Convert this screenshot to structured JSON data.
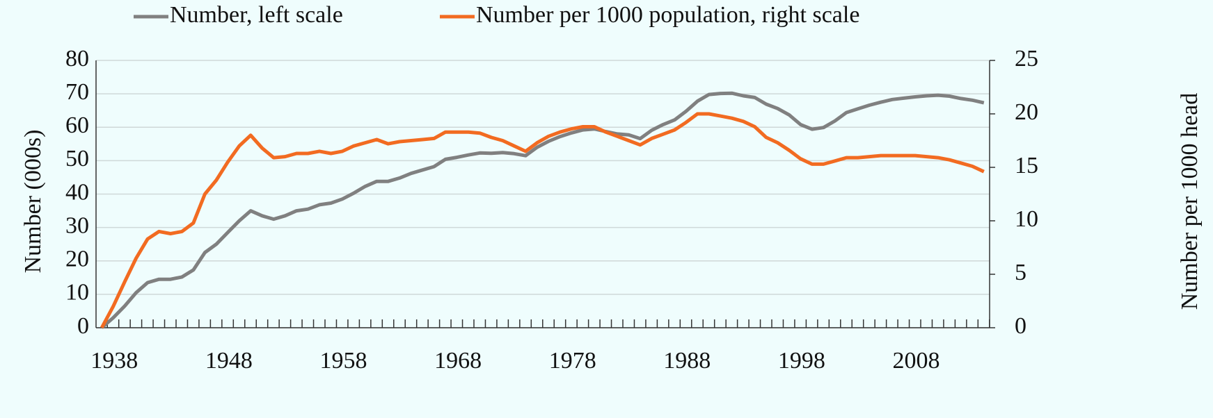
{
  "chart_data": {
    "type": "line",
    "x": [
      1938,
      1939,
      1940,
      1941,
      1942,
      1943,
      1944,
      1945,
      1946,
      1947,
      1948,
      1949,
      1950,
      1951,
      1952,
      1953,
      1954,
      1955,
      1956,
      1957,
      1958,
      1959,
      1960,
      1961,
      1962,
      1963,
      1964,
      1965,
      1966,
      1967,
      1968,
      1969,
      1970,
      1971,
      1972,
      1973,
      1974,
      1975,
      1976,
      1977,
      1978,
      1979,
      1980,
      1981,
      1982,
      1983,
      1984,
      1985,
      1986,
      1987,
      1988,
      1989,
      1990,
      1991,
      1992,
      1993,
      1994,
      1995,
      1996,
      1997,
      1998,
      1999,
      2000,
      2001,
      2002,
      2003,
      2004,
      2005,
      2006,
      2007,
      2008,
      2009,
      2010,
      2011,
      2012,
      2013,
      2014,
      2015
    ],
    "series": [
      {
        "name": "Number, left scale",
        "color": "#808080",
        "axis": "y",
        "values": [
          0,
          3,
          6.5,
          10.5,
          13.5,
          14.5,
          14.5,
          15.2,
          17.3,
          22.5,
          25,
          28.5,
          32,
          35,
          33.5,
          32.5,
          33.5,
          35,
          35.5,
          36.8,
          37.3,
          38.5,
          40.3,
          42.3,
          43.8,
          43.8,
          44.8,
          46.2,
          47.2,
          48.2,
          50.4,
          51,
          51.7,
          52.3,
          52.2,
          52.4,
          52.1,
          51.5,
          54,
          55.8,
          57.2,
          58.3,
          59.2,
          59.5,
          58.7,
          58,
          57.7,
          56.6,
          59.1,
          60.8,
          62.2,
          64.8,
          67.8,
          69.8,
          70.1,
          70.2,
          69.4,
          68.9,
          66.9,
          65.6,
          63.7,
          60.8,
          59.4,
          59.9,
          61.9,
          64.4,
          65.5,
          66.6,
          67.5,
          68.3,
          68.7,
          69.1,
          69.4,
          69.6,
          69.3,
          68.6,
          68.1,
          67.3
        ]
      },
      {
        "name": "Number per 1000 population, right scale",
        "color": "#f26b21",
        "axis": "y2",
        "values": [
          0,
          2,
          4.3,
          6.5,
          8.3,
          9,
          8.8,
          9,
          9.8,
          12.5,
          13.8,
          15.5,
          17,
          18,
          16.8,
          15.9,
          16,
          16.3,
          16.3,
          16.5,
          16.3,
          16.5,
          17,
          17.3,
          17.6,
          17.2,
          17.4,
          17.5,
          17.6,
          17.7,
          18.3,
          18.3,
          18.3,
          18.2,
          17.8,
          17.5,
          17,
          16.5,
          17.3,
          17.9,
          18.3,
          18.6,
          18.8,
          18.8,
          18.3,
          17.9,
          17.5,
          17.1,
          17.7,
          18.1,
          18.5,
          19.2,
          20,
          20,
          19.8,
          19.6,
          19.3,
          18.8,
          17.8,
          17.3,
          16.6,
          15.8,
          15.3,
          15.3,
          15.6,
          15.9,
          15.9,
          16,
          16.1,
          16.1,
          16.1,
          16.1,
          16,
          15.9,
          15.7,
          15.4,
          15.1,
          14.6
        ]
      }
    ],
    "ylabel": "Number (000s)",
    "y2label": "Number per 1000 head",
    "xlim": [
      1937.5,
      2015.5
    ],
    "xticks": [
      1938,
      1948,
      1958,
      1968,
      1978,
      1988,
      1998,
      2008
    ],
    "ylim": [
      0,
      80
    ],
    "yticks": [
      0,
      10,
      20,
      30,
      40,
      50,
      60,
      70,
      80
    ],
    "y2lim": [
      0,
      25
    ],
    "y2ticks": [
      0,
      5,
      10,
      15,
      20,
      25
    ],
    "grid": true,
    "legend": "top"
  }
}
